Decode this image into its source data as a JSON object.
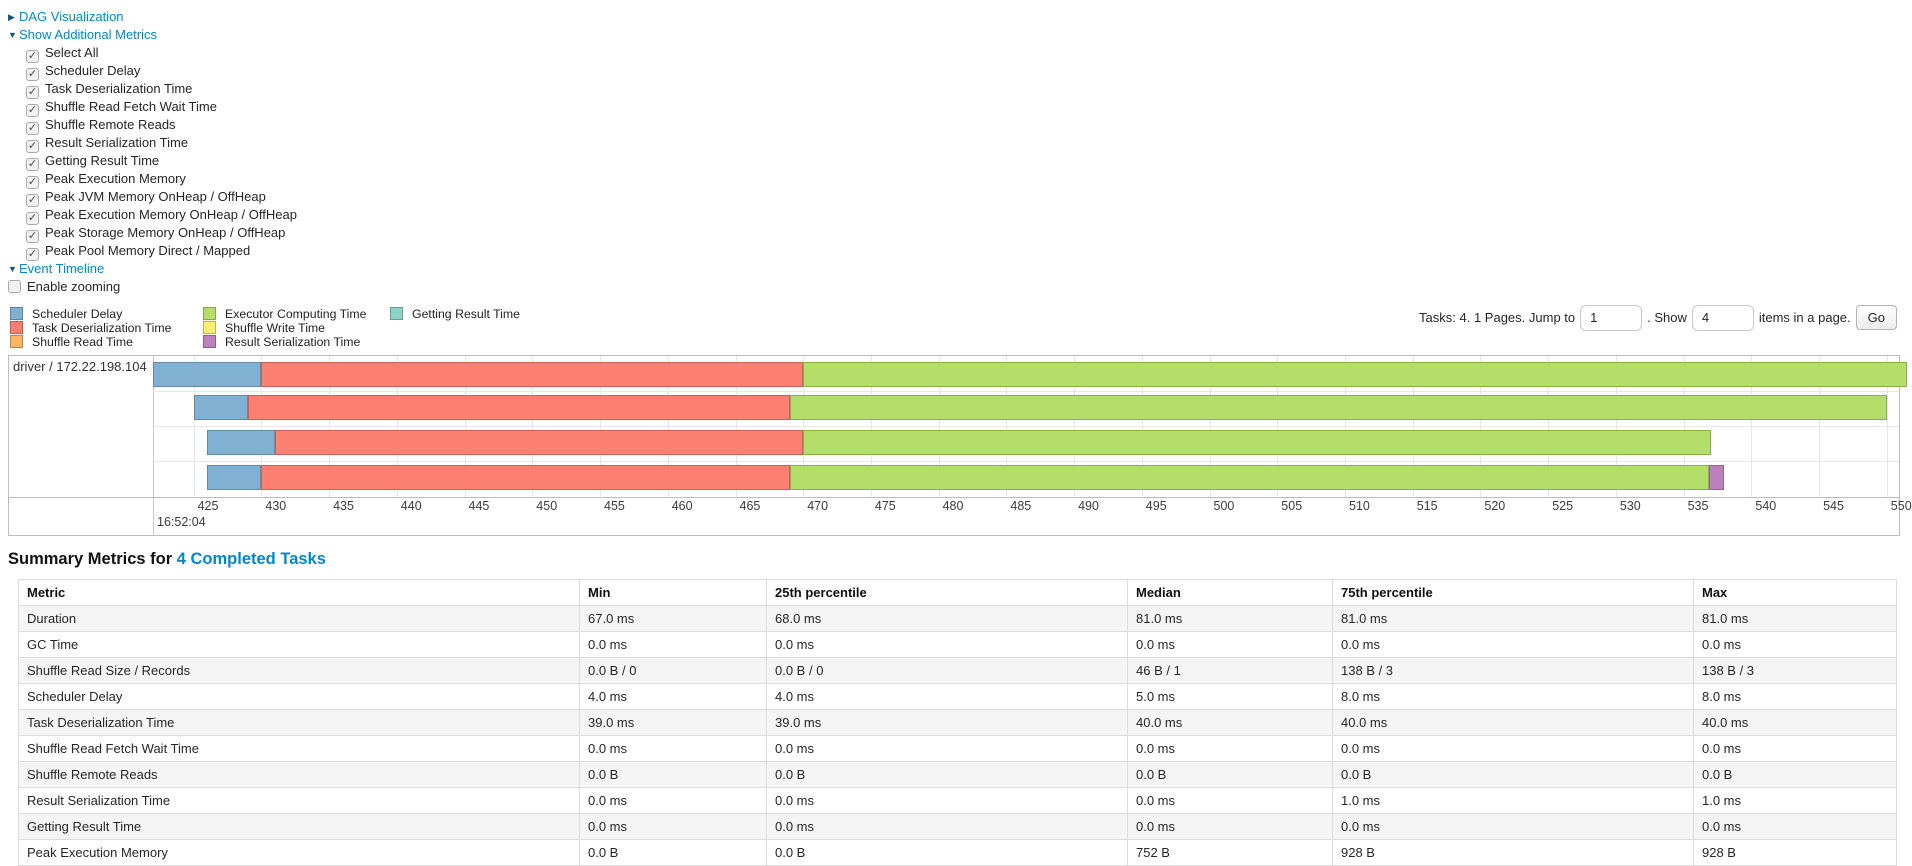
{
  "link_color": "#0088cc",
  "controls": {
    "dag": {
      "label": "DAG Visualization",
      "arrow": "▶",
      "expanded": false
    },
    "additional_metrics": {
      "label": "Show Additional Metrics",
      "arrow": "▼",
      "expanded": true
    },
    "metric_checkboxes": [
      {
        "label": "Select All",
        "checked": true
      },
      {
        "label": "Scheduler Delay",
        "checked": true
      },
      {
        "label": "Task Deserialization Time",
        "checked": true
      },
      {
        "label": "Shuffle Read Fetch Wait Time",
        "checked": true
      },
      {
        "label": "Shuffle Remote Reads",
        "checked": true
      },
      {
        "label": "Result Serialization Time",
        "checked": true
      },
      {
        "label": "Getting Result Time",
        "checked": true
      },
      {
        "label": "Peak Execution Memory",
        "checked": true
      },
      {
        "label": "Peak JVM Memory OnHeap / OffHeap",
        "checked": true
      },
      {
        "label": "Peak Execution Memory OnHeap / OffHeap",
        "checked": true
      },
      {
        "label": "Peak Storage Memory OnHeap / OffHeap",
        "checked": true
      },
      {
        "label": "Peak Pool Memory Direct / Mapped",
        "checked": true
      }
    ],
    "event_timeline": {
      "label": "Event Timeline",
      "arrow": "▼",
      "expanded": true
    },
    "enable_zooming": {
      "label": "Enable zooming",
      "checked": false
    }
  },
  "legend": {
    "columns": [
      [
        {
          "label": "Scheduler Delay",
          "metric": "scheduler_delay"
        },
        {
          "label": "Task Deserialization Time",
          "metric": "task_deserialization_time"
        },
        {
          "label": "Shuffle Read Time",
          "metric": "shuffle_read_time"
        }
      ],
      [
        {
          "label": "Executor Computing Time",
          "metric": "executor_computing_time"
        },
        {
          "label": "Shuffle Write Time",
          "metric": "shuffle_write_time"
        },
        {
          "label": "Result Serialization Time",
          "metric": "result_serialization_time"
        }
      ],
      [
        {
          "label": "Getting Result Time",
          "metric": "getting_result_time"
        }
      ]
    ]
  },
  "palette": {
    "scheduler_delay": "#80B1D3",
    "task_deserialization_time": "#FB8072",
    "shuffle_read_time": "#FDB462",
    "executor_computing_time": "#B3DE69",
    "shuffle_write_time": "#FFED6F",
    "result_serialization_time": "#BC80BD",
    "getting_result_time": "#8DD3C7"
  },
  "pagination": {
    "prefix": "Tasks: 4. 1 Pages. Jump to",
    "jump_value": "1",
    "middle": ". Show",
    "show_value": "4",
    "suffix": "items in a page.",
    "go_label": "Go"
  },
  "chart_data": {
    "type": "timeline",
    "title": "Event Timeline",
    "executor_label": "driver / 172.22.198.104",
    "major_tick_label": "16:52:04",
    "axis": {
      "min": 422,
      "max": 550.9,
      "tick_start": 425,
      "tick_step": 5,
      "tick_end": 550
    },
    "tasks": [
      {
        "segments": [
          {
            "metric": "scheduler_delay",
            "start": 422.0,
            "end": 430.0
          },
          {
            "metric": "task_deserialization_time",
            "start": 430.0,
            "end": 470.0
          },
          {
            "metric": "executor_computing_time",
            "start": 470.0,
            "end": 551.5
          }
        ]
      },
      {
        "segments": [
          {
            "metric": "scheduler_delay",
            "start": 425.0,
            "end": 429.0
          },
          {
            "metric": "task_deserialization_time",
            "start": 429.0,
            "end": 469.0
          },
          {
            "metric": "executor_computing_time",
            "start": 469.0,
            "end": 550.0
          }
        ]
      },
      {
        "segments": [
          {
            "metric": "scheduler_delay",
            "start": 426.0,
            "end": 431.0
          },
          {
            "metric": "task_deserialization_time",
            "start": 431.0,
            "end": 470.0
          },
          {
            "metric": "executor_computing_time",
            "start": 470.0,
            "end": 537.0
          }
        ]
      },
      {
        "segments": [
          {
            "metric": "scheduler_delay",
            "start": 426.0,
            "end": 430.0
          },
          {
            "metric": "task_deserialization_time",
            "start": 430.0,
            "end": 469.0
          },
          {
            "metric": "executor_computing_time",
            "start": 469.0,
            "end": 536.9
          },
          {
            "metric": "result_serialization_time",
            "start": 536.9,
            "end": 538.0
          }
        ]
      }
    ]
  },
  "summary": {
    "title_prefix": "Summary Metrics for",
    "title_link": "4 Completed Tasks",
    "headers": [
      "Metric",
      "Min",
      "25th percentile",
      "Median",
      "75th percentile",
      "Max"
    ],
    "rows": [
      [
        "Duration",
        "67.0 ms",
        "68.0 ms",
        "81.0 ms",
        "81.0 ms",
        "81.0 ms"
      ],
      [
        "GC Time",
        "0.0 ms",
        "0.0 ms",
        "0.0 ms",
        "0.0 ms",
        "0.0 ms"
      ],
      [
        "Shuffle Read Size / Records",
        "0.0 B / 0",
        "0.0 B / 0",
        "46 B / 1",
        "138 B / 3",
        "138 B / 3"
      ],
      [
        "Scheduler Delay",
        "4.0 ms",
        "4.0 ms",
        "5.0 ms",
        "8.0 ms",
        "8.0 ms"
      ],
      [
        "Task Deserialization Time",
        "39.0 ms",
        "39.0 ms",
        "40.0 ms",
        "40.0 ms",
        "40.0 ms"
      ],
      [
        "Shuffle Read Fetch Wait Time",
        "0.0 ms",
        "0.0 ms",
        "0.0 ms",
        "0.0 ms",
        "0.0 ms"
      ],
      [
        "Shuffle Remote Reads",
        "0.0 B",
        "0.0 B",
        "0.0 B",
        "0.0 B",
        "0.0 B"
      ],
      [
        "Result Serialization Time",
        "0.0 ms",
        "0.0 ms",
        "0.0 ms",
        "1.0 ms",
        "1.0 ms"
      ],
      [
        "Getting Result Time",
        "0.0 ms",
        "0.0 ms",
        "0.0 ms",
        "0.0 ms",
        "0.0 ms"
      ],
      [
        "Peak Execution Memory",
        "0.0 B",
        "0.0 B",
        "752 B",
        "928 B",
        "928 B"
      ]
    ]
  }
}
